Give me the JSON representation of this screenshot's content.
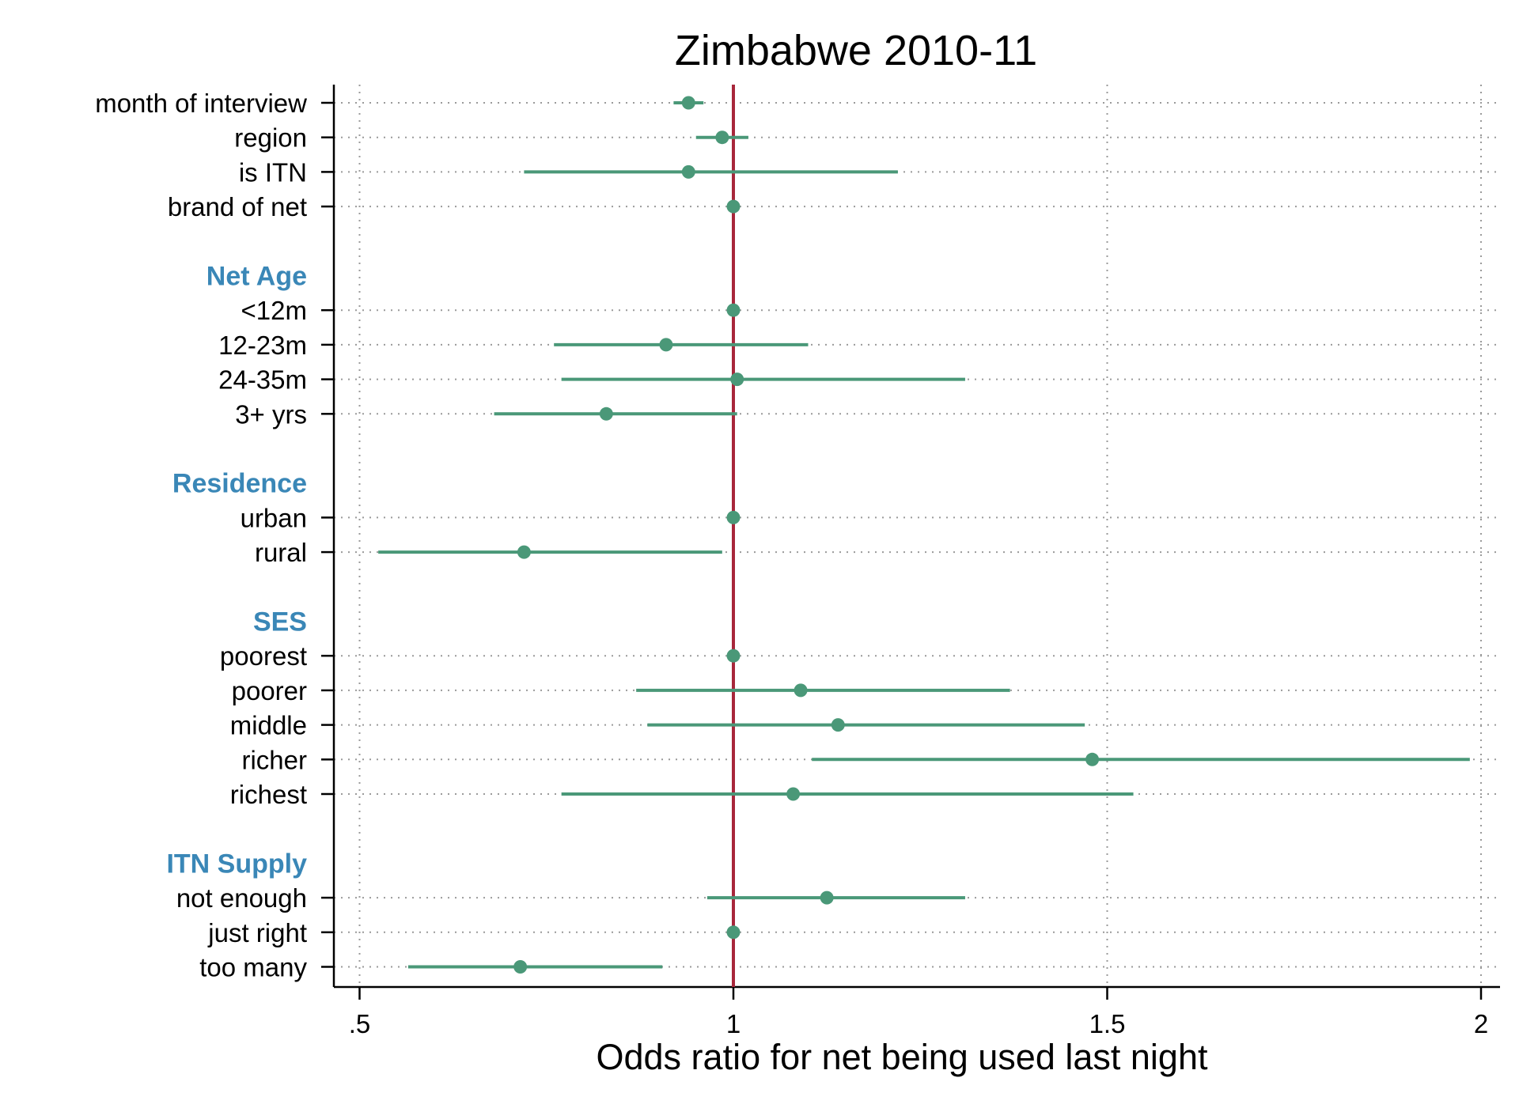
{
  "colors": {
    "marker": "#4a9878",
    "ci_line": "#4a9878",
    "reference_line": "#a8273b",
    "group_label": "#3a87b7",
    "axis": "#000000",
    "grid": "#9a9a9a"
  },
  "chart_data": {
    "type": "scatter",
    "subtype": "coefficient-plot-with-confidence-intervals",
    "title": "Zimbabwe 2010-11",
    "xlabel": "Odds ratio for net being used last night",
    "ylabel": "",
    "xlim": [
      0.48,
      2.02
    ],
    "xticks": [
      0.5,
      1,
      1.5,
      2
    ],
    "xtick_labels": [
      ".5",
      "1",
      "1.5",
      "2"
    ],
    "reference_line_x": 1,
    "grid": "dotted, at x ticks and each row",
    "rows": [
      {
        "label": "month of interview",
        "kind": "item",
        "or": 0.94,
        "lo": 0.92,
        "hi": 0.96
      },
      {
        "label": "region",
        "kind": "item",
        "or": 0.985,
        "lo": 0.95,
        "hi": 1.02
      },
      {
        "label": "is ITN",
        "kind": "item",
        "or": 0.94,
        "lo": 0.72,
        "hi": 1.22
      },
      {
        "label": "brand of net",
        "kind": "item",
        "or": 1.0,
        "lo": 1.0,
        "hi": 1.0
      },
      {
        "label": "",
        "kind": "gap"
      },
      {
        "label": "Net Age",
        "kind": "group"
      },
      {
        "label": "<12m",
        "kind": "item",
        "or": 1.0,
        "lo": 1.0,
        "hi": 1.0
      },
      {
        "label": "12-23m",
        "kind": "item",
        "or": 0.91,
        "lo": 0.76,
        "hi": 1.1
      },
      {
        "label": "24-35m",
        "kind": "item",
        "or": 1.005,
        "lo": 0.77,
        "hi": 1.31
      },
      {
        "label": "3+ yrs",
        "kind": "item",
        "or": 0.83,
        "lo": 0.68,
        "hi": 1.005
      },
      {
        "label": "",
        "kind": "gap"
      },
      {
        "label": "Residence",
        "kind": "group"
      },
      {
        "label": "urban",
        "kind": "item",
        "or": 1.0,
        "lo": 1.0,
        "hi": 1.0
      },
      {
        "label": "rural",
        "kind": "item",
        "or": 0.72,
        "lo": 0.525,
        "hi": 0.985
      },
      {
        "label": "",
        "kind": "gap"
      },
      {
        "label": "SES",
        "kind": "group"
      },
      {
        "label": "poorest",
        "kind": "item",
        "or": 1.0,
        "lo": 1.0,
        "hi": 1.0
      },
      {
        "label": "poorer",
        "kind": "item",
        "or": 1.09,
        "lo": 0.87,
        "hi": 1.37
      },
      {
        "label": "middle",
        "kind": "item",
        "or": 1.14,
        "lo": 0.885,
        "hi": 1.47
      },
      {
        "label": "richer",
        "kind": "item",
        "or": 1.48,
        "lo": 1.105,
        "hi": 1.985
      },
      {
        "label": "richest",
        "kind": "item",
        "or": 1.08,
        "lo": 0.77,
        "hi": 1.535
      },
      {
        "label": "",
        "kind": "gap"
      },
      {
        "label": "ITN Supply",
        "kind": "group"
      },
      {
        "label": "not enough",
        "kind": "item",
        "or": 1.125,
        "lo": 0.965,
        "hi": 1.31
      },
      {
        "label": "just right",
        "kind": "item",
        "or": 1.0,
        "lo": 1.0,
        "hi": 1.0
      },
      {
        "label": "too many",
        "kind": "item",
        "or": 0.715,
        "lo": 0.565,
        "hi": 0.905
      }
    ]
  }
}
